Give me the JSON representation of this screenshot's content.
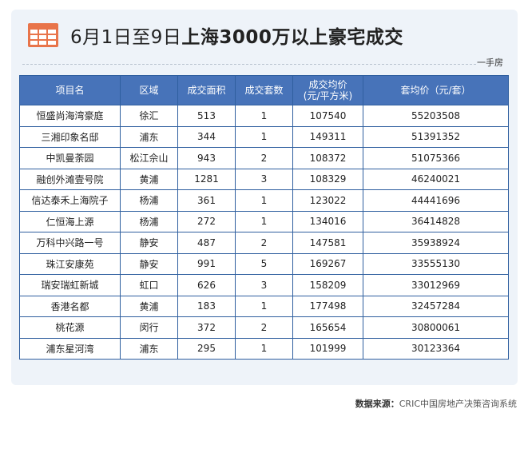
{
  "title": {
    "date_range": "6月1日至9日",
    "headline": "上海3000万以上豪宅成交"
  },
  "subtitle": "一手房",
  "table": {
    "headers": [
      "项目名",
      "区域",
      "成交面积",
      "成交套数",
      "成交均价\n(元/平方米)",
      "套均价（元/套）"
    ],
    "rows": [
      [
        "恒盛尚海湾豪庭",
        "徐汇",
        "513",
        "1",
        "107540",
        "55203508"
      ],
      [
        "三湘印象名邸",
        "浦东",
        "344",
        "1",
        "149311",
        "51391352"
      ],
      [
        "中凯曼荼园",
        "松江佘山",
        "943",
        "2",
        "108372",
        "51075366"
      ],
      [
        "融创外滩壹号院",
        "黄浦",
        "1281",
        "3",
        "108329",
        "46240021"
      ],
      [
        "信达泰禾上海院子",
        "杨浦",
        "361",
        "1",
        "123022",
        "44441696"
      ],
      [
        "仁恒海上源",
        "杨浦",
        "272",
        "1",
        "134016",
        "36414828"
      ],
      [
        "万科中兴路一号",
        "静安",
        "487",
        "2",
        "147581",
        "35938924"
      ],
      [
        "珠江安康苑",
        "静安",
        "991",
        "5",
        "169267",
        "33555130"
      ],
      [
        "瑞安瑞虹新城",
        "虹口",
        "626",
        "3",
        "158209",
        "33012969"
      ],
      [
        "香港名都",
        "黄浦",
        "183",
        "1",
        "177498",
        "32457284"
      ],
      [
        "桃花源",
        "闵行",
        "372",
        "2",
        "165654",
        "30800061"
      ],
      [
        "浦东星河湾",
        "浦东",
        "295",
        "1",
        "101999",
        "30123364"
      ]
    ]
  },
  "source": {
    "label": "数据来源：",
    "text": "CRIC中国房地产决策咨询系统"
  },
  "colors": {
    "header_blue": "#4773b9",
    "card_background": "#eef3f9",
    "icon_orange": "#e8744a"
  }
}
